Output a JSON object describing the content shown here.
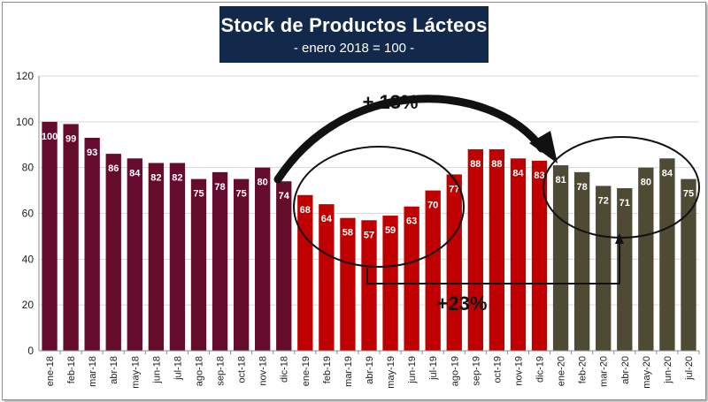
{
  "chart_data": {
    "type": "bar",
    "title": "Stock de Productos Lácteos",
    "subtitle": "- enero 2018 = 100 -",
    "ylim": [
      0,
      120
    ],
    "yticks": [
      0,
      20,
      40,
      60,
      80,
      100,
      120
    ],
    "grid": true,
    "categories": [
      "ene-18",
      "feb-18",
      "mar-18",
      "abr-18",
      "may-18",
      "jun-18",
      "jul-18",
      "ago-18",
      "sep-18",
      "oct-18",
      "nov-18",
      "dic-18",
      "ene-19",
      "feb-19",
      "mar-19",
      "abr-19",
      "may-19",
      "jun-19",
      "jul-19",
      "ago-19",
      "sep-19",
      "oct-19",
      "nov-19",
      "dic-19",
      "ene-20",
      "feb-20",
      "mar-20",
      "abr-20",
      "may-20",
      "jun-20",
      "jul-20"
    ],
    "values": [
      100,
      99,
      93,
      86,
      84,
      82,
      82,
      75,
      78,
      75,
      80,
      74,
      68,
      64,
      58,
      57,
      59,
      63,
      70,
      77,
      88,
      88,
      84,
      83,
      81,
      78,
      72,
      71,
      80,
      84,
      75
    ],
    "data_labels": [
      "100",
      "99",
      "93",
      "86",
      "84",
      "82",
      "82",
      "75",
      "78",
      "75",
      "80",
      "74",
      "68",
      "64",
      "58",
      "57",
      "59",
      "63",
      "70",
      "77",
      "88",
      "88",
      "84",
      "83",
      "81",
      "78",
      "72",
      "71",
      "80",
      "84",
      "75"
    ],
    "year_colors": [
      "#650b2c",
      "#c00000",
      "#4f4a34"
    ],
    "annotations": {
      "arc_label": "+ 13%",
      "bracket_label": "+23%"
    }
  }
}
